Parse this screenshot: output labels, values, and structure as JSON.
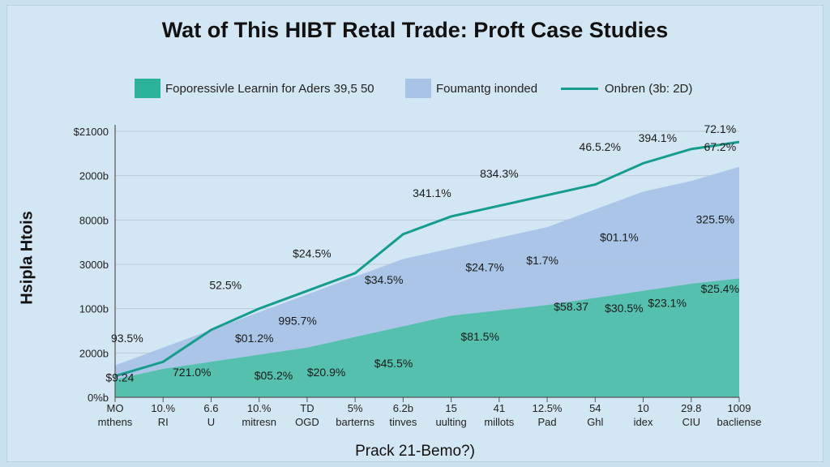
{
  "colors": {
    "background": "#d3e6f3",
    "lower_area": "#4fc0aa",
    "upper_area": "#a8c3e6",
    "line": "#169c8c",
    "grid": "#b7cad6"
  },
  "chart_data": {
    "type": "area",
    "title": "Wat of This HIBT Retal Trade: Proft Case Studies",
    "xlabel": "Prack 21-Bemo?)",
    "ylabel": "Hsipla Htois",
    "legend": {
      "placement": "top",
      "entries": [
        {
          "label": "Foporessivle Learnin for Aders 39,5 50",
          "kind": "area",
          "color": "#2bb39a"
        },
        {
          "label": "Foumantg inonded",
          "kind": "area",
          "color": "#a8c3e6"
        },
        {
          "label": "Onbren (3b: 2D)",
          "kind": "line",
          "color": "#169c8c"
        }
      ]
    },
    "yticks": [
      "$21000",
      "2000b",
      "8000b",
      "3000b",
      "1000b",
      "2000b",
      "0%b"
    ],
    "grid": true,
    "x_categories": [
      [
        "MO",
        "mthens"
      ],
      [
        "10.%",
        "RI"
      ],
      [
        "6.6",
        "U"
      ],
      [
        "10.%",
        "mitresn"
      ],
      [
        "TD",
        "OGD"
      ],
      [
        "5%",
        "barterns"
      ],
      [
        "6.2b",
        "tinves"
      ],
      [
        "15",
        "uulting"
      ],
      [
        "41",
        "millots"
      ],
      [
        "12.5%",
        "Pad"
      ],
      [
        "54",
        "Ghl"
      ],
      [
        "10",
        "idex"
      ],
      [
        "29.8",
        "CIU"
      ],
      [
        "1009",
        "bacliense"
      ]
    ],
    "series": [
      {
        "kind": "area",
        "layer": "lower",
        "values": [
          0.5,
          0.8,
          1.0,
          1.2,
          1.4,
          1.7,
          2.0,
          2.3,
          2.45,
          2.6,
          2.8,
          3.0,
          3.2,
          3.35
        ]
      },
      {
        "kind": "area",
        "layer": "upper",
        "values": [
          0.9,
          1.4,
          1.9,
          2.4,
          2.9,
          3.4,
          3.9,
          4.2,
          4.5,
          4.8,
          5.3,
          5.8,
          6.1,
          6.5
        ]
      },
      {
        "kind": "line",
        "values": [
          0.6,
          1.0,
          1.9,
          2.5,
          3.0,
          3.5,
          4.6,
          5.1,
          5.4,
          5.7,
          6.0,
          6.6,
          7.0,
          7.2
        ]
      }
    ],
    "ylim": [
      0,
      7.5
    ],
    "annotations": [
      {
        "text": "72.1%",
        "x": 12.6,
        "y": 7.45
      },
      {
        "text": "394.1%",
        "x": 11.3,
        "y": 7.2
      },
      {
        "text": "67.2%",
        "x": 12.6,
        "y": 6.95
      },
      {
        "text": "46.5.2%",
        "x": 10.1,
        "y": 6.95
      },
      {
        "text": "834.3%",
        "x": 8.0,
        "y": 6.2
      },
      {
        "text": "341.1%",
        "x": 6.6,
        "y": 5.65
      },
      {
        "text": "325.5%",
        "x": 12.5,
        "y": 4.9
      },
      {
        "text": "$01.1%",
        "x": 10.5,
        "y": 4.4
      },
      {
        "text": "$24.5%",
        "x": 4.1,
        "y": 3.95
      },
      {
        "text": "$1.7%",
        "x": 8.9,
        "y": 3.75
      },
      {
        "text": "$24.7%",
        "x": 7.7,
        "y": 3.55
      },
      {
        "text": "$34.5%",
        "x": 5.6,
        "y": 3.2
      },
      {
        "text": "52.5%",
        "x": 2.3,
        "y": 3.05
      },
      {
        "text": "$25.4%",
        "x": 12.6,
        "y": 2.95
      },
      {
        "text": "$23.1%",
        "x": 11.5,
        "y": 2.55
      },
      {
        "text": "$30.5%",
        "x": 10.6,
        "y": 2.4
      },
      {
        "text": "$58.37",
        "x": 9.5,
        "y": 2.45
      },
      {
        "text": "995.7%",
        "x": 3.8,
        "y": 2.05
      },
      {
        "text": "$01.2%",
        "x": 2.9,
        "y": 1.55
      },
      {
        "text": "93.5%",
        "x": 0.25,
        "y": 1.55
      },
      {
        "text": "$81.5%",
        "x": 7.6,
        "y": 1.6
      },
      {
        "text": "$45.5%",
        "x": 5.8,
        "y": 0.85
      },
      {
        "text": "721.0%",
        "x": 1.6,
        "y": 0.6
      },
      {
        "text": "$05.2%",
        "x": 3.3,
        "y": 0.5
      },
      {
        "text": "$20.9%",
        "x": 4.4,
        "y": 0.6
      },
      {
        "text": "$9.24",
        "x": 0.1,
        "y": 0.45
      }
    ]
  }
}
